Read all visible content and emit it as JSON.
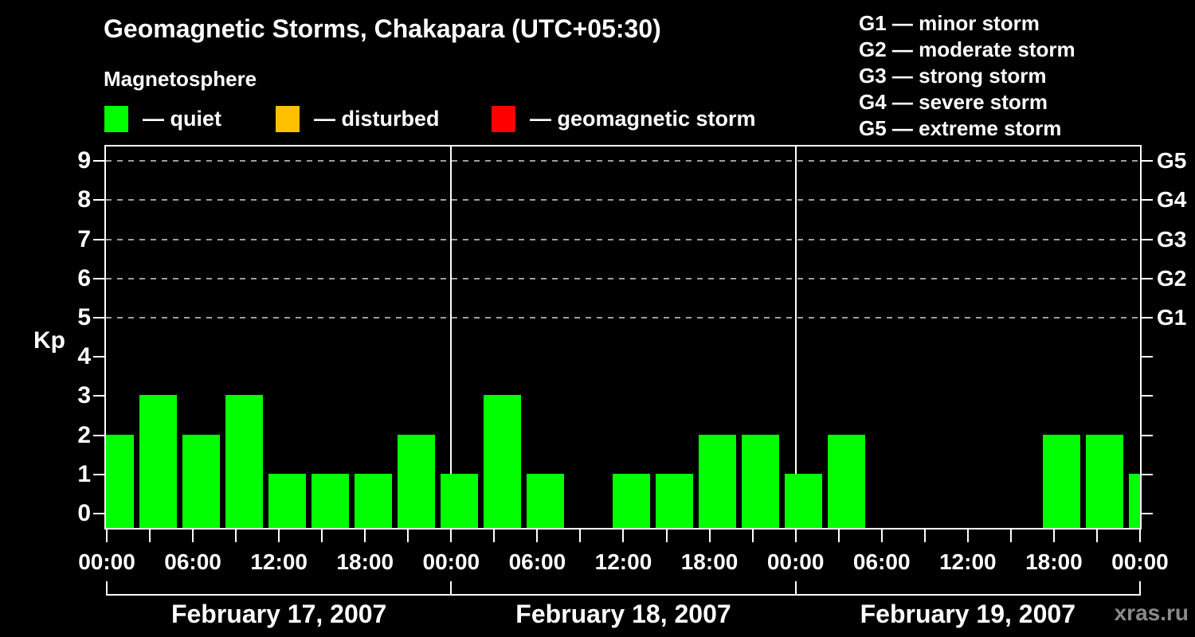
{
  "header": {
    "title": "Geomagnetic Storms, Chakapara (UTC+05:30)",
    "subtitle": "Magnetosphere"
  },
  "kp_legend": [
    {
      "name": "quiet",
      "label": "— quiet",
      "color": "#00ff00"
    },
    {
      "name": "disturbed",
      "label": "— disturbed",
      "color": "#ffc000"
    },
    {
      "name": "geomagnetic-storm",
      "label": "— geomagnetic storm",
      "color": "#ff0000"
    }
  ],
  "g_legend": [
    "G1 — minor storm",
    "G2 — moderate storm",
    "G3 — strong storm",
    "G4 — severe storm",
    "G5 — extreme storm"
  ],
  "watermark": "xras.ru",
  "chart_data": {
    "type": "bar",
    "title": "Geomagnetic Storms, Chakapara (UTC+05:30)",
    "ylabel": "Kp",
    "ylim": [
      0,
      9
    ],
    "y_ticks": [
      0,
      1,
      2,
      3,
      4,
      5,
      6,
      7,
      8,
      9
    ],
    "grid_kp_levels": [
      5,
      6,
      7,
      8,
      9
    ],
    "grid_style": "dashed",
    "grid_color": "#9e9e9e",
    "legend_position": "top",
    "bar_color": "#00ff00",
    "interval_hours": 3,
    "days": [
      {
        "date": "February 17, 2007",
        "values": [
          2,
          3,
          2,
          3,
          1,
          1,
          1,
          2
        ]
      },
      {
        "date": "February 18, 2007",
        "values": [
          1,
          3,
          1,
          0,
          1,
          1,
          2,
          2
        ]
      },
      {
        "date": "February 19, 2007",
        "values": [
          1,
          2,
          0,
          0,
          0,
          0,
          2,
          2
        ]
      }
    ],
    "trailing_bar_kp": 1,
    "x_tick_labels": [
      "00:00",
      "06:00",
      "12:00",
      "18:00",
      "00:00",
      "06:00",
      "12:00",
      "18:00",
      "00:00",
      "06:00",
      "12:00",
      "18:00",
      "00:00"
    ],
    "right_axis": [
      {
        "kp": 9,
        "label": "G5"
      },
      {
        "kp": 8,
        "label": "G4"
      },
      {
        "kp": 7,
        "label": "G3"
      },
      {
        "kp": 6,
        "label": "G2"
      },
      {
        "kp": 5,
        "label": "G1"
      }
    ]
  }
}
